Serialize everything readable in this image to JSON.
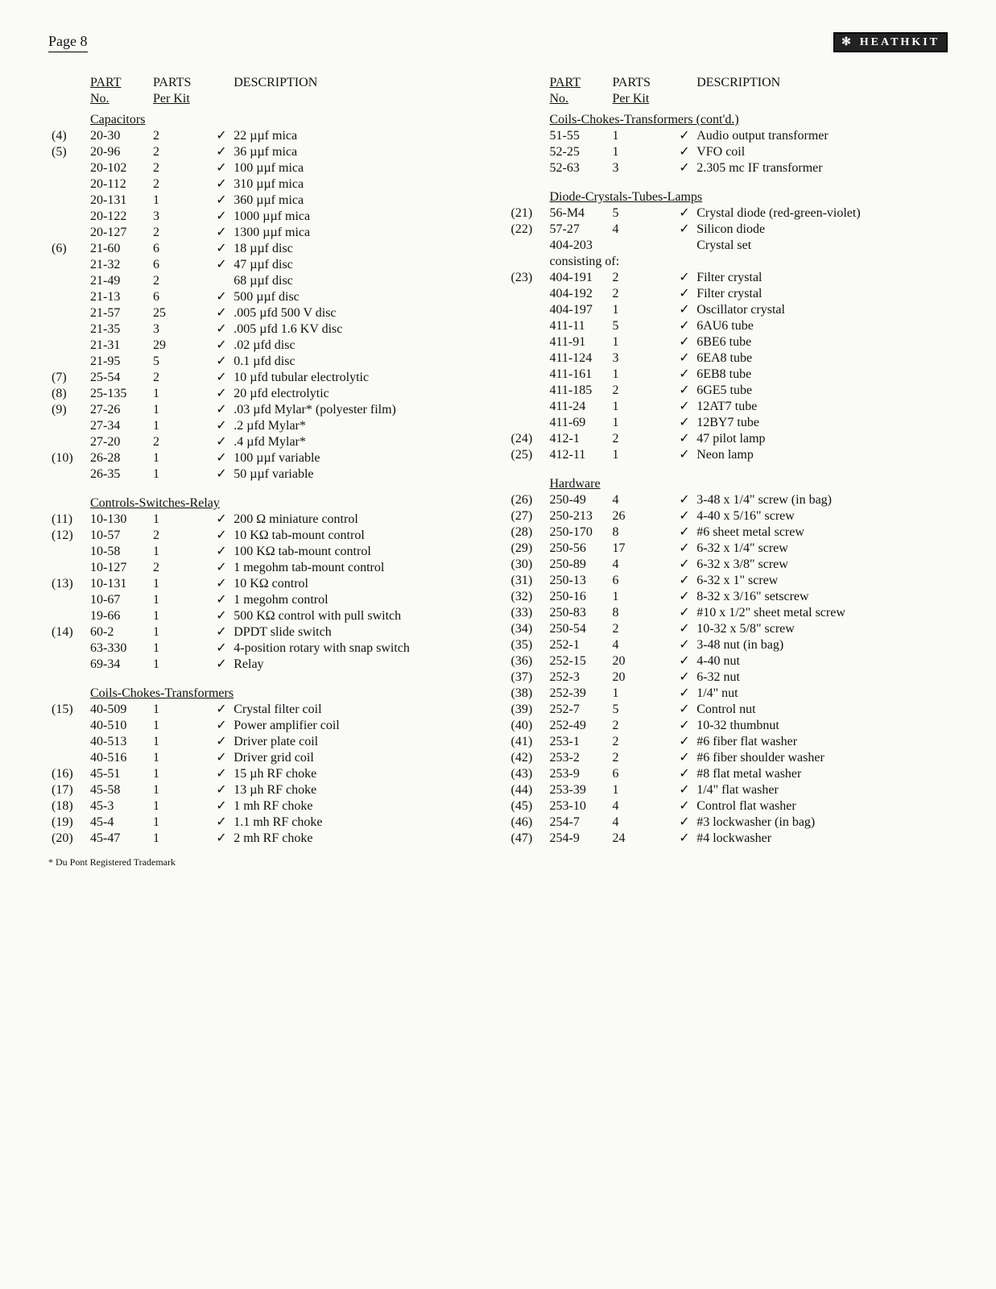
{
  "page_label": "Page 8",
  "logo_text": "HEATHKIT",
  "headers": {
    "part": "PART",
    "no": "No.",
    "parts": "PARTS",
    "perkit": "Per Kit",
    "desc": "DESCRIPTION"
  },
  "footnote": "* Du Pont Registered Trademark",
  "left_sections": [
    {
      "title": "Capacitors",
      "rows": [
        {
          "ref": "(4)",
          "pn": "20-30",
          "qty": "2",
          "ck": "✓",
          "desc": "22 µµf mica"
        },
        {
          "ref": "(5)",
          "pn": "20-96",
          "qty": "2",
          "ck": "✓",
          "desc": "36 µµf mica"
        },
        {
          "ref": "",
          "pn": "20-102",
          "qty": "2",
          "ck": "✓",
          "desc": "100 µµf mica"
        },
        {
          "ref": "",
          "pn": "20-112",
          "qty": "2",
          "ck": "✓",
          "desc": "310 µµf mica"
        },
        {
          "ref": "",
          "pn": "20-131",
          "qty": "1",
          "ck": "✓",
          "desc": "360 µµf mica"
        },
        {
          "ref": "",
          "pn": "20-122",
          "qty": "3",
          "ck": "✓",
          "desc": "1000 µµf mica"
        },
        {
          "ref": "",
          "pn": "20-127",
          "qty": "2",
          "ck": "✓",
          "desc": "1300 µµf mica"
        },
        {
          "ref": "(6)",
          "pn": "21-60",
          "qty": "6",
          "ck": "✓",
          "desc": "18 µµf disc"
        },
        {
          "ref": "",
          "pn": "21-32",
          "qty": "6",
          "ck": "✓",
          "desc": "47 µµf disc"
        },
        {
          "ref": "",
          "pn": "21-49",
          "qty": "2",
          "ck": "",
          "desc": "68 µµf disc"
        },
        {
          "ref": "",
          "pn": "21-13",
          "qty": "6",
          "ck": "✓",
          "desc": "500 µµf disc"
        },
        {
          "ref": "",
          "pn": "21-57",
          "qty": "25",
          "ck": "✓",
          "desc": ".005 µfd 500 V disc"
        },
        {
          "ref": "",
          "pn": "21-35",
          "qty": "3",
          "ck": "✓",
          "desc": ".005 µfd 1.6 KV disc"
        },
        {
          "ref": "",
          "pn": "21-31",
          "qty": "29",
          "ck": "✓",
          "desc": ".02 µfd disc"
        },
        {
          "ref": "",
          "pn": "21-95",
          "qty": "5",
          "ck": "✓",
          "desc": "0.1 µfd disc"
        },
        {
          "ref": "(7)",
          "pn": "25-54",
          "qty": "2",
          "ck": "✓",
          "desc": "10 µfd tubular electrolytic"
        },
        {
          "ref": "(8)",
          "pn": "25-135",
          "qty": "1",
          "ck": "✓",
          "desc": "20 µfd electrolytic"
        },
        {
          "ref": "(9)",
          "pn": "27-26",
          "qty": "1",
          "ck": "✓",
          "desc": ".03 µfd Mylar* (polyester film)"
        },
        {
          "ref": "",
          "pn": "27-34",
          "qty": "1",
          "ck": "✓",
          "desc": ".2 µfd Mylar*"
        },
        {
          "ref": "",
          "pn": "27-20",
          "qty": "2",
          "ck": "✓",
          "desc": ".4 µfd Mylar*"
        },
        {
          "ref": "(10)",
          "pn": "26-28",
          "qty": "1",
          "ck": "✓",
          "desc": "100 µµf variable"
        },
        {
          "ref": "",
          "pn": "26-35",
          "qty": "1",
          "ck": "✓",
          "desc": "50 µµf variable"
        }
      ]
    },
    {
      "title": "Controls-Switches-Relay",
      "rows": [
        {
          "ref": "(11)",
          "pn": "10-130",
          "qty": "1",
          "ck": "✓",
          "desc": "200 Ω miniature control"
        },
        {
          "ref": "(12)",
          "pn": "10-57",
          "qty": "2",
          "ck": "✓",
          "desc": "10 KΩ tab-mount control"
        },
        {
          "ref": "",
          "pn": "10-58",
          "qty": "1",
          "ck": "✓",
          "desc": "100 KΩ tab-mount control"
        },
        {
          "ref": "",
          "pn": "10-127",
          "qty": "2",
          "ck": "✓",
          "desc": "1 megohm tab-mount control"
        },
        {
          "ref": "(13)",
          "pn": "10-131",
          "qty": "1",
          "ck": "✓",
          "desc": "10 KΩ control"
        },
        {
          "ref": "",
          "pn": "10-67",
          "qty": "1",
          "ck": "✓",
          "desc": "1 megohm control"
        },
        {
          "ref": "",
          "pn": "19-66",
          "qty": "1",
          "ck": "✓",
          "desc": "500 KΩ control with pull switch"
        },
        {
          "ref": "(14)",
          "pn": "60-2",
          "qty": "1",
          "ck": "✓",
          "desc": "DPDT slide switch"
        },
        {
          "ref": "",
          "pn": "63-330",
          "qty": "1",
          "ck": "✓",
          "desc": "4-position rotary with snap switch"
        },
        {
          "ref": "",
          "pn": "69-34",
          "qty": "1",
          "ck": "✓",
          "desc": "Relay"
        }
      ]
    },
    {
      "title": "Coils-Chokes-Transformers",
      "rows": [
        {
          "ref": "(15)",
          "pn": "40-509",
          "qty": "1",
          "ck": "✓",
          "desc": "Crystal filter coil"
        },
        {
          "ref": "",
          "pn": "40-510",
          "qty": "1",
          "ck": "✓",
          "desc": "Power amplifier coil"
        },
        {
          "ref": "",
          "pn": "40-513",
          "qty": "1",
          "ck": "✓",
          "desc": "Driver plate coil"
        },
        {
          "ref": "",
          "pn": "40-516",
          "qty": "1",
          "ck": "✓",
          "desc": "Driver grid coil"
        },
        {
          "ref": "(16)",
          "pn": "45-51",
          "qty": "1",
          "ck": "✓",
          "desc": "15 µh RF choke"
        },
        {
          "ref": "(17)",
          "pn": "45-58",
          "qty": "1",
          "ck": "✓",
          "desc": "13 µh RF choke"
        },
        {
          "ref": "(18)",
          "pn": "45-3",
          "qty": "1",
          "ck": "✓",
          "desc": "1 mh RF choke"
        },
        {
          "ref": "(19)",
          "pn": "45-4",
          "qty": "1",
          "ck": "✓",
          "desc": "1.1 mh RF choke"
        },
        {
          "ref": "(20)",
          "pn": "45-47",
          "qty": "1",
          "ck": "✓",
          "desc": "2 mh RF choke"
        }
      ]
    }
  ],
  "right_sections": [
    {
      "title": "Coils-Chokes-Transformers (cont'd.)",
      "rows": [
        {
          "ref": "",
          "pn": "51-55",
          "qty": "1",
          "ck": "✓",
          "desc": "Audio output transformer"
        },
        {
          "ref": "",
          "pn": "52-25",
          "qty": "1",
          "ck": "✓",
          "desc": "VFO coil"
        },
        {
          "ref": "",
          "pn": "52-63",
          "qty": "3",
          "ck": "✓",
          "desc": "2.305 mc IF transformer"
        }
      ]
    },
    {
      "title": "Diode-Crystals-Tubes-Lamps",
      "rows": [
        {
          "ref": "(21)",
          "pn": "56-M4",
          "qty": "5",
          "ck": "✓",
          "desc": "Crystal diode (red-green-violet)"
        },
        {
          "ref": "(22)",
          "pn": "57-27",
          "qty": "4",
          "ck": "✓",
          "desc": "Silicon diode"
        },
        {
          "ref": "",
          "pn": "404-203",
          "qty": "",
          "ck": "",
          "desc": "Crystal set"
        }
      ],
      "subheader": "consisting of:",
      "rows2": [
        {
          "ref": "(23)",
          "pn": "404-191",
          "qty": "2",
          "ck": "✓",
          "desc": "Filter crystal"
        },
        {
          "ref": "",
          "pn": "404-192",
          "qty": "2",
          "ck": "✓",
          "desc": "Filter crystal"
        },
        {
          "ref": "",
          "pn": "404-197",
          "qty": "1",
          "ck": "✓",
          "desc": "Oscillator crystal"
        },
        {
          "ref": "",
          "pn": "411-11",
          "qty": "5",
          "ck": "✓",
          "desc": "6AU6 tube"
        },
        {
          "ref": "",
          "pn": "411-91",
          "qty": "1",
          "ck": "✓",
          "desc": "6BE6 tube"
        },
        {
          "ref": "",
          "pn": "411-124",
          "qty": "3",
          "ck": "✓",
          "desc": "6EA8 tube"
        },
        {
          "ref": "",
          "pn": "411-161",
          "qty": "1",
          "ck": "✓",
          "desc": "6EB8 tube"
        },
        {
          "ref": "",
          "pn": "411-185",
          "qty": "2",
          "ck": "✓",
          "desc": "6GE5 tube"
        },
        {
          "ref": "",
          "pn": "411-24",
          "qty": "1",
          "ck": "✓",
          "desc": "12AT7 tube"
        },
        {
          "ref": "",
          "pn": "411-69",
          "qty": "1",
          "ck": "✓",
          "desc": "12BY7 tube"
        },
        {
          "ref": "(24)",
          "pn": "412-1",
          "qty": "2",
          "ck": "✓",
          "desc": "47 pilot lamp"
        },
        {
          "ref": "(25)",
          "pn": "412-11",
          "qty": "1",
          "ck": "✓",
          "desc": "Neon lamp"
        }
      ]
    },
    {
      "title": "Hardware",
      "rows": [
        {
          "ref": "(26)",
          "pn": "250-49",
          "qty": "4",
          "ck": "✓",
          "desc": "3-48 x 1/4\" screw (in bag)"
        },
        {
          "ref": "(27)",
          "pn": "250-213",
          "qty": "26",
          "ck": "✓",
          "desc": "4-40 x 5/16\" screw"
        },
        {
          "ref": "(28)",
          "pn": "250-170",
          "qty": "8",
          "ck": "✓",
          "desc": "#6 sheet metal screw"
        },
        {
          "ref": "(29)",
          "pn": "250-56",
          "qty": "17",
          "ck": "✓",
          "desc": "6-32 x 1/4\" screw"
        },
        {
          "ref": "(30)",
          "pn": "250-89",
          "qty": "4",
          "ck": "✓",
          "desc": "6-32 x 3/8\" screw"
        },
        {
          "ref": "(31)",
          "pn": "250-13",
          "qty": "6",
          "ck": "✓",
          "desc": "6-32 x 1\" screw"
        },
        {
          "ref": "(32)",
          "pn": "250-16",
          "qty": "1",
          "ck": "✓",
          "desc": "8-32 x 3/16\" setscrew"
        },
        {
          "ref": "(33)",
          "pn": "250-83",
          "qty": "8",
          "ck": "✓",
          "desc": "#10 x 1/2\" sheet metal screw"
        },
        {
          "ref": "(34)",
          "pn": "250-54",
          "qty": "2",
          "ck": "✓",
          "desc": "10-32 x 5/8\" screw"
        },
        {
          "ref": "(35)",
          "pn": "252-1",
          "qty": "4",
          "ck": "✓",
          "desc": "3-48 nut (in bag)"
        },
        {
          "ref": "(36)",
          "pn": "252-15",
          "qty": "20",
          "ck": "✓",
          "desc": "4-40 nut"
        },
        {
          "ref": "(37)",
          "pn": "252-3",
          "qty": "20",
          "ck": "✓",
          "desc": "6-32 nut"
        },
        {
          "ref": "(38)",
          "pn": "252-39",
          "qty": "1",
          "ck": "✓",
          "desc": "1/4\" nut"
        },
        {
          "ref": "(39)",
          "pn": "252-7",
          "qty": "5",
          "ck": "✓",
          "desc": "Control nut"
        },
        {
          "ref": "(40)",
          "pn": "252-49",
          "qty": "2",
          "ck": "✓",
          "desc": "10-32 thumbnut"
        },
        {
          "ref": "(41)",
          "pn": "253-1",
          "qty": "2",
          "ck": "✓",
          "desc": "#6 fiber flat washer"
        },
        {
          "ref": "(42)",
          "pn": "253-2",
          "qty": "2",
          "ck": "✓",
          "desc": "#6 fiber shoulder washer"
        },
        {
          "ref": "(43)",
          "pn": "253-9",
          "qty": "6",
          "ck": "✓",
          "desc": "#8 flat metal washer"
        },
        {
          "ref": "(44)",
          "pn": "253-39",
          "qty": "1",
          "ck": "✓",
          "desc": "1/4\" flat washer"
        },
        {
          "ref": "(45)",
          "pn": "253-10",
          "qty": "4",
          "ck": "✓",
          "desc": "Control flat washer"
        },
        {
          "ref": "(46)",
          "pn": "254-7",
          "qty": "4",
          "ck": "✓",
          "desc": "#3 lockwasher (in bag)"
        },
        {
          "ref": "(47)",
          "pn": "254-9",
          "qty": "24",
          "ck": "✓",
          "desc": "#4 lockwasher"
        }
      ]
    }
  ]
}
